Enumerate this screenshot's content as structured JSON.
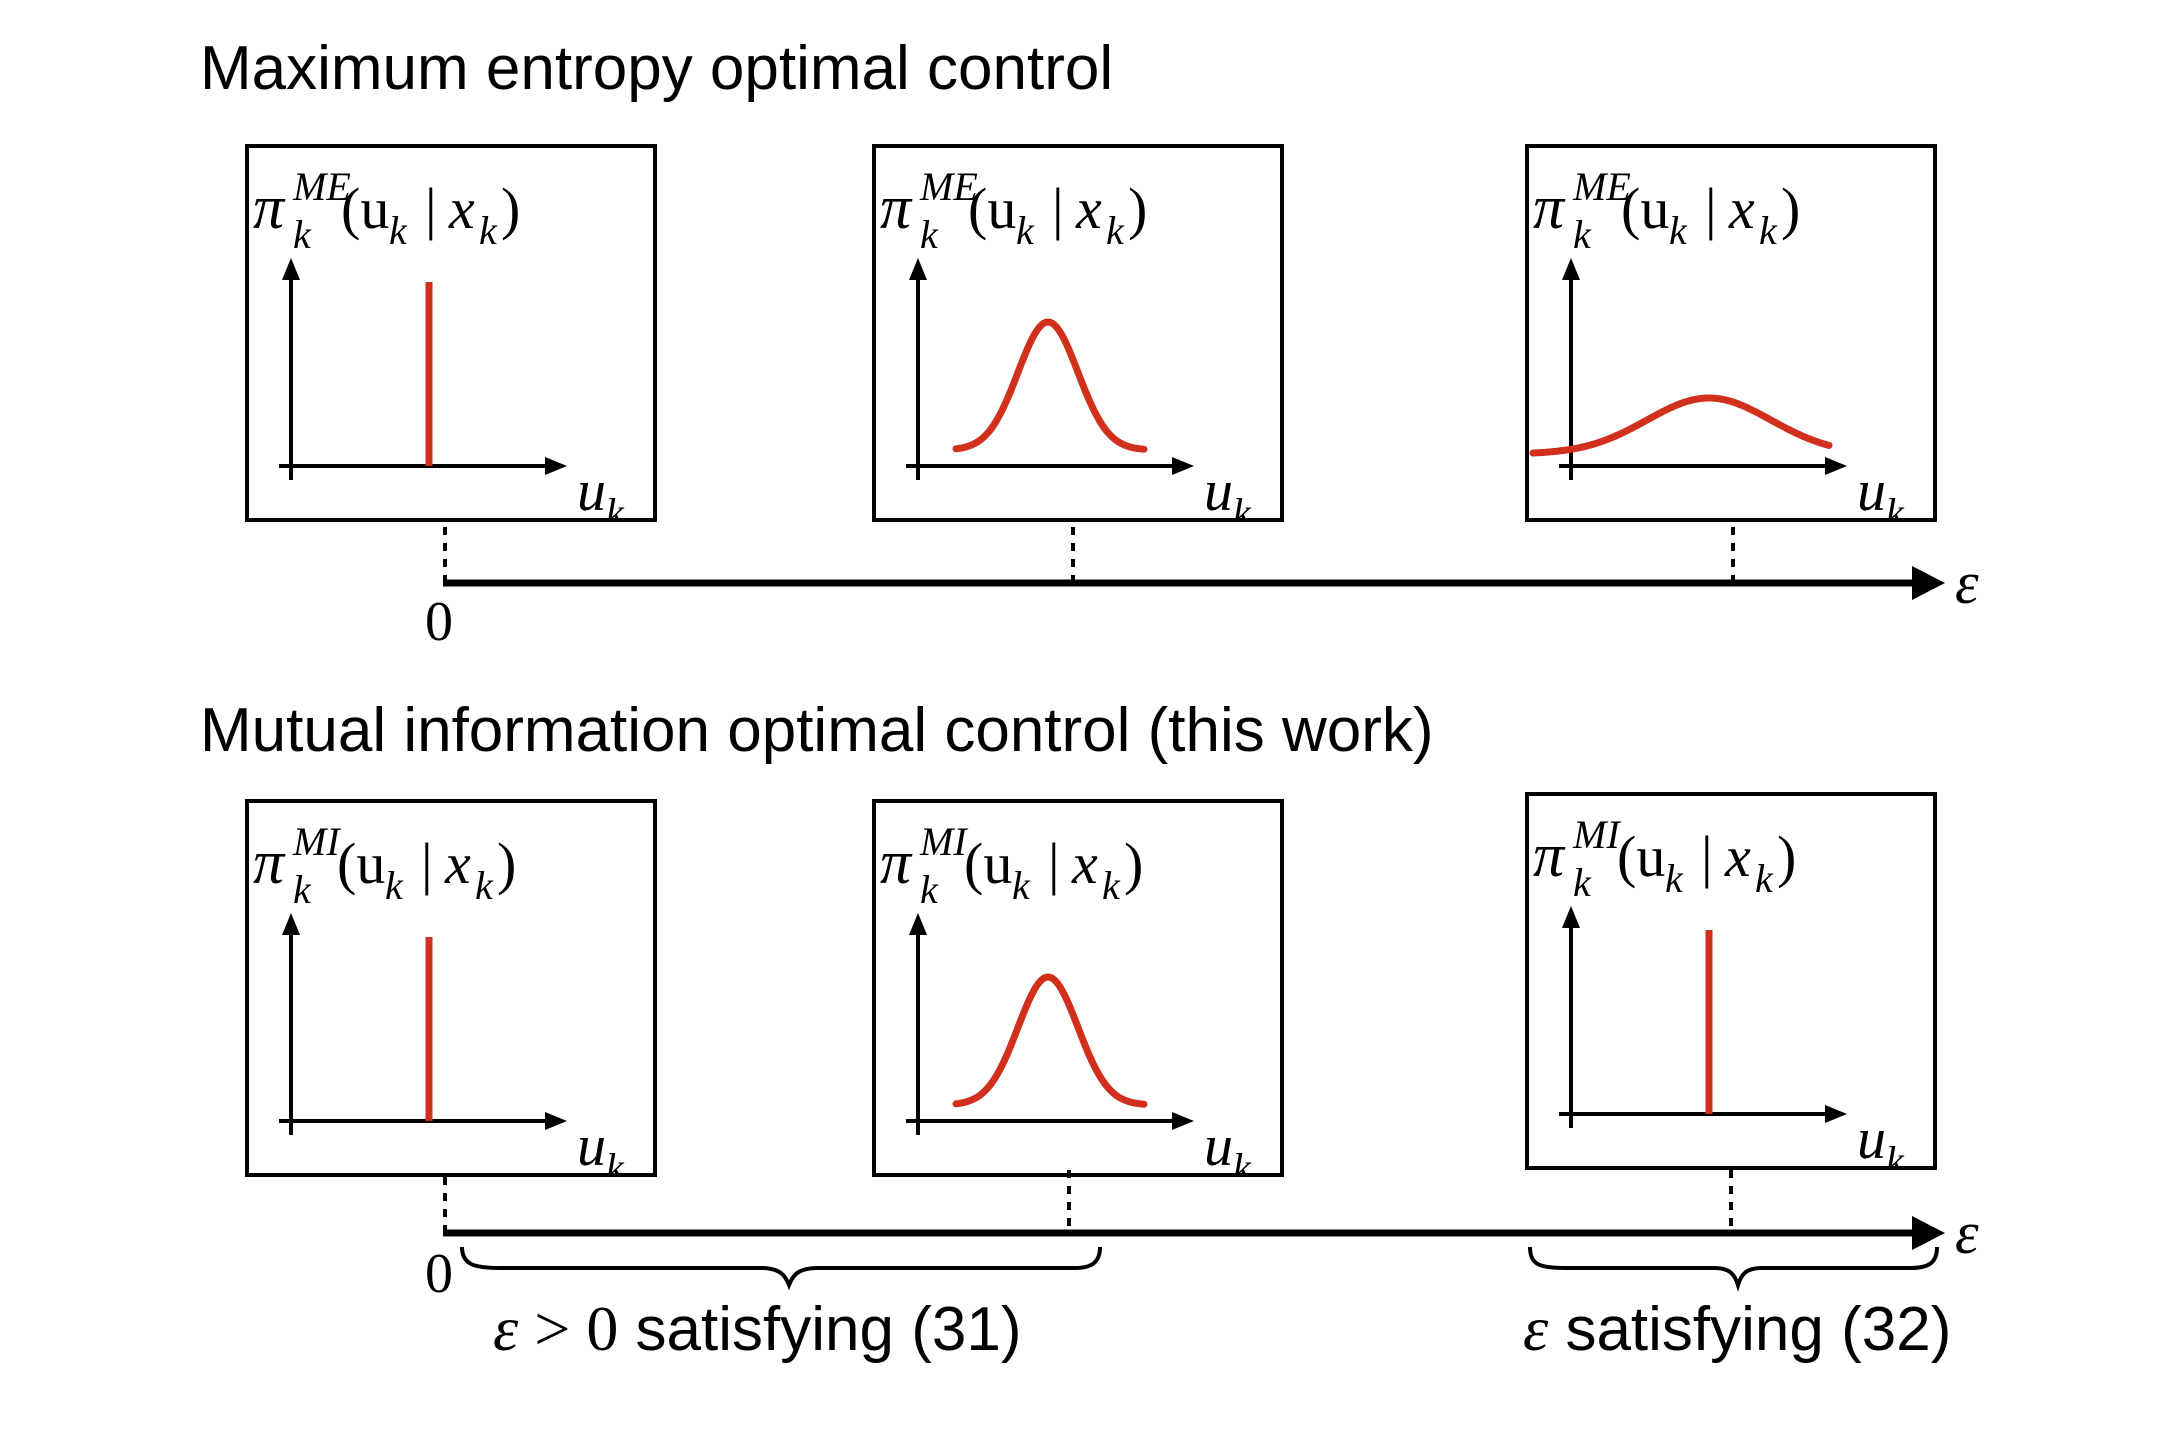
{
  "top": {
    "title": "Maximum entropy optimal control",
    "axis_symbol": "ε",
    "axis_zero": "0",
    "policy_label": {
      "pi": "π",
      "sub": "k",
      "sup": "ME",
      "args": "(u",
      "args_sub": "k",
      "bar": "|",
      "x": "x",
      "x_sub": "k",
      "close": ")"
    },
    "panels": [
      {
        "shape": "delta"
      },
      {
        "shape": "narrow-gaussian"
      },
      {
        "shape": "wide-gaussian"
      }
    ]
  },
  "bottom": {
    "title": "Mutual information optimal control (this work)",
    "axis_symbol": "ε",
    "axis_zero": "0",
    "policy_label": {
      "pi": "π",
      "sub": "k",
      "sup": "MI",
      "args": "(u",
      "args_sub": "k",
      "bar": "|",
      "x": "x",
      "x_sub": "k",
      "close": ")"
    },
    "panels": [
      {
        "shape": "delta"
      },
      {
        "shape": "narrow-gaussian"
      },
      {
        "shape": "delta"
      }
    ],
    "brace_left": {
      "sym": "ε",
      "op": " > ",
      "num": "0",
      "text": " satisfying (31)"
    },
    "brace_right": {
      "sym": "ε",
      "text": " satisfying (32)"
    }
  },
  "axis_label": {
    "u": "u",
    "sub": "k"
  },
  "colors": {
    "curve": "#d1301c",
    "ink": "#000000"
  }
}
